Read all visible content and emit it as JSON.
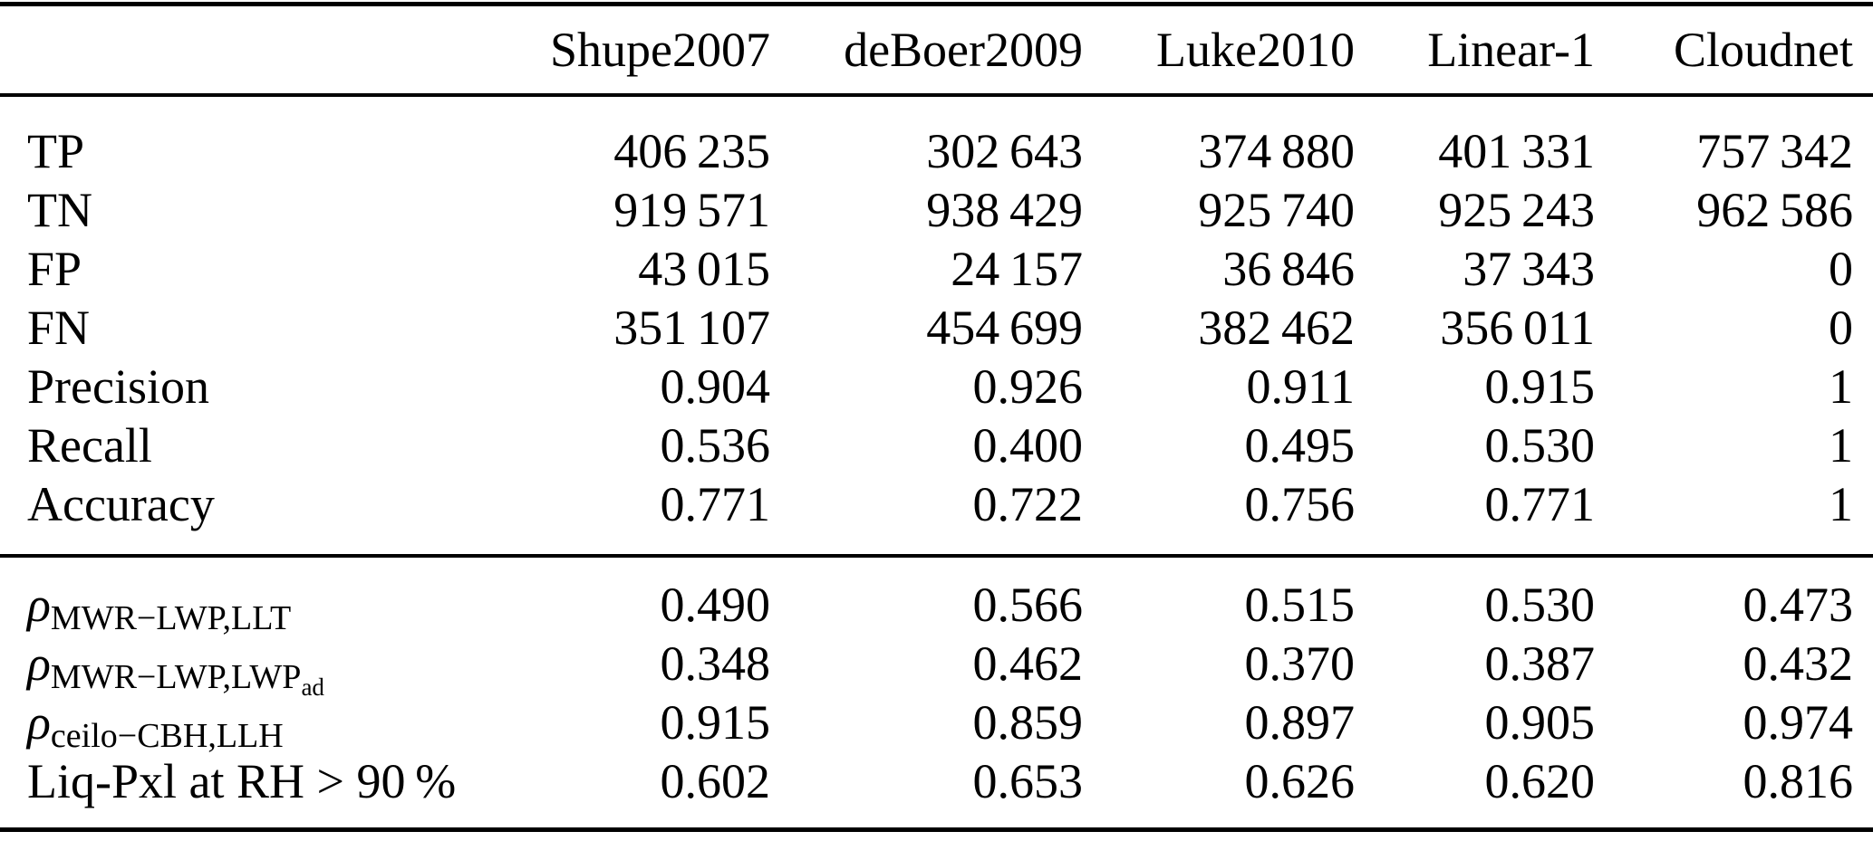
{
  "table": {
    "columns": [
      "Shupe2007",
      "deBoer2009",
      "Luke2010",
      "Linear-1",
      "Cloudnet"
    ],
    "corner_label": "",
    "sections": [
      {
        "rows": [
          {
            "label": "TP",
            "values": [
              "406 235",
              "302 643",
              "374 880",
              "401 331",
              "757 342"
            ]
          },
          {
            "label": "TN",
            "values": [
              "919 571",
              "938 429",
              "925 740",
              "925 243",
              "962 586"
            ]
          },
          {
            "label": "FP",
            "values": [
              "43 015",
              "24 157",
              "36 846",
              "37 343",
              "0"
            ]
          },
          {
            "label": "FN",
            "values": [
              "351 107",
              "454 699",
              "382 462",
              "356 011",
              "0"
            ]
          },
          {
            "label": "Precision",
            "values": [
              "0.904",
              "0.926",
              "0.911",
              "0.915",
              "1"
            ]
          },
          {
            "label": "Recall",
            "values": [
              "0.536",
              "0.400",
              "0.495",
              "0.530",
              "1"
            ]
          },
          {
            "label": "Accuracy",
            "values": [
              "0.771",
              "0.722",
              "0.756",
              "0.771",
              "1"
            ]
          }
        ]
      },
      {
        "rows": [
          {
            "label_base": "ρ",
            "label_sub": "MWR−LWP,LLT",
            "label_subsub": "",
            "values": [
              "0.490",
              "0.566",
              "0.515",
              "0.530",
              "0.473"
            ]
          },
          {
            "label_base": "ρ",
            "label_sub": "MWR−LWP,LWP",
            "label_subsub": "ad",
            "values": [
              "0.348",
              "0.462",
              "0.370",
              "0.387",
              "0.432"
            ]
          },
          {
            "label_base": "ρ",
            "label_sub": "ceilo−CBH,LLH",
            "label_subsub": "",
            "values": [
              "0.915",
              "0.859",
              "0.897",
              "0.905",
              "0.974"
            ]
          },
          {
            "label_base": "Liq-Pxl at RH > 90 %",
            "label_sub": "",
            "label_subsub": "",
            "values": [
              "0.602",
              "0.653",
              "0.626",
              "0.620",
              "0.816"
            ]
          }
        ]
      }
    ]
  }
}
